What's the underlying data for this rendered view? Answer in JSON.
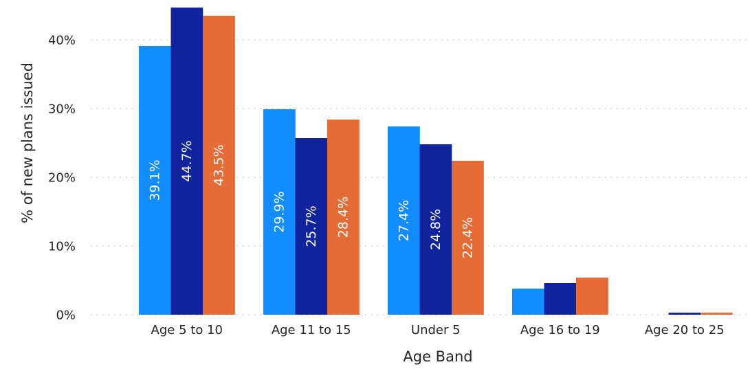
{
  "chart_data": {
    "type": "bar",
    "xlabel": "Age Band",
    "ylabel": "% of new plans issued",
    "categories": [
      "Age 5 to 10",
      "Age 11 to 15",
      "Under 5",
      "Age 16 to 19",
      "Age 20 to 25"
    ],
    "series": [
      {
        "values": [
          39.1,
          29.9,
          27.4,
          3.8,
          0.0
        ],
        "color": "#118dff"
      },
      {
        "values": [
          44.7,
          25.7,
          24.8,
          4.6,
          0.3
        ],
        "color": "#12239e"
      },
      {
        "values": [
          43.5,
          28.4,
          22.4,
          5.4,
          0.3
        ],
        "color": "#e66c37"
      }
    ],
    "data_labels": {
      "show_for_categories": [
        "Age 5 to 10",
        "Age 11 to 15",
        "Under 5"
      ],
      "format": "{v}%",
      "decimals": 1
    },
    "y_ticks": [
      0,
      10,
      20,
      30,
      40
    ],
    "y_tick_labels": [
      "0%",
      "10%",
      "20%",
      "30%",
      "40%"
    ],
    "ylim": [
      0,
      44.7
    ],
    "grid": true
  }
}
